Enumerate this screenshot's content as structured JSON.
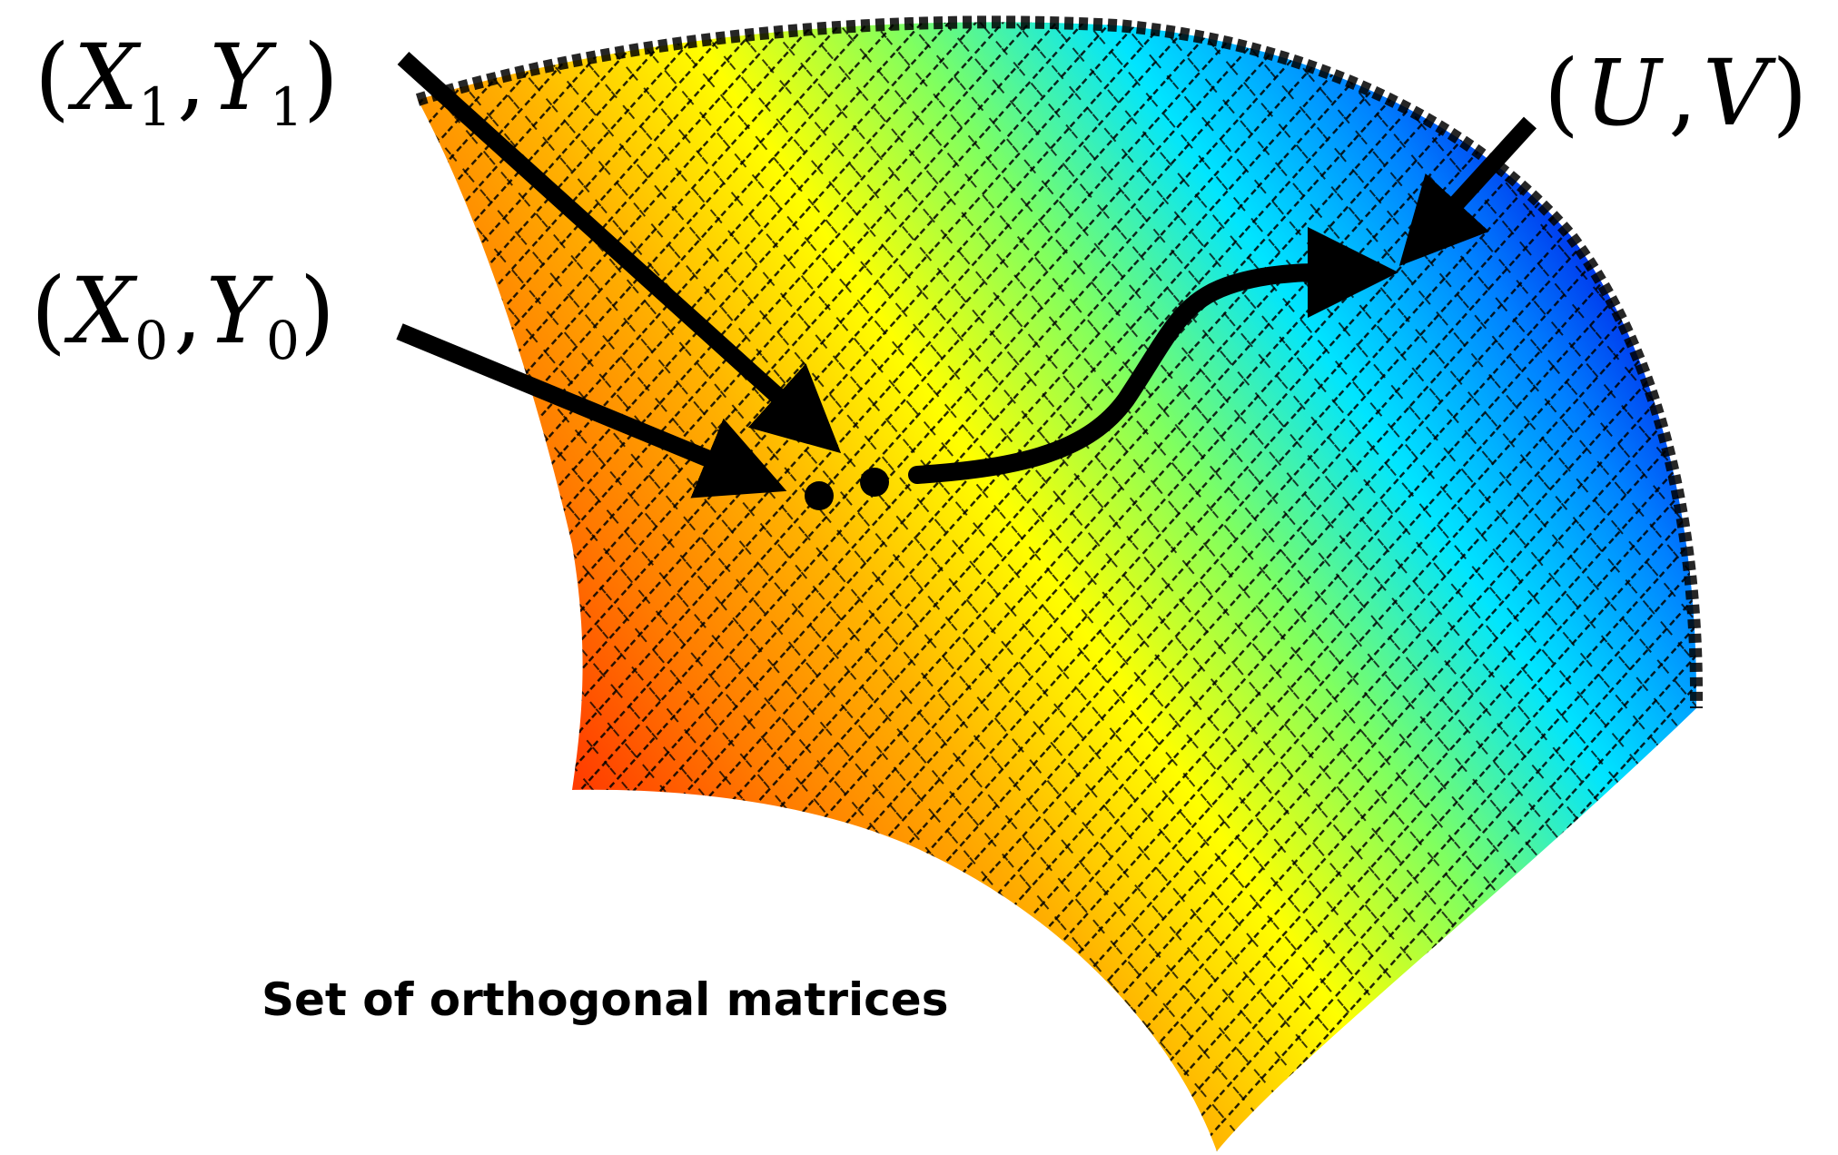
{
  "caption": "Set of orthogonal matrices",
  "labels": {
    "x1y1": {
      "open": "(",
      "v1": "X",
      "s1": "1",
      "comma": ",",
      "v2": "Y",
      "s2": "1",
      "close": ")"
    },
    "x0y0": {
      "open": "(",
      "v1": "X",
      "s1": "0",
      "comma": ",",
      "v2": "Y",
      "s2": "0",
      "close": ")"
    },
    "uv": {
      "open": "(",
      "v1": "U",
      "comma": ",",
      "v2": "V",
      "close": ")"
    }
  },
  "colors": {
    "surface_stops": [
      "#ff2a00",
      "#ff7a00",
      "#ffb300",
      "#ffff00",
      "#7fff60",
      "#00e5ff",
      "#0080ff",
      "#0000e0"
    ],
    "ink": "#000000",
    "background": "#ffffff"
  }
}
